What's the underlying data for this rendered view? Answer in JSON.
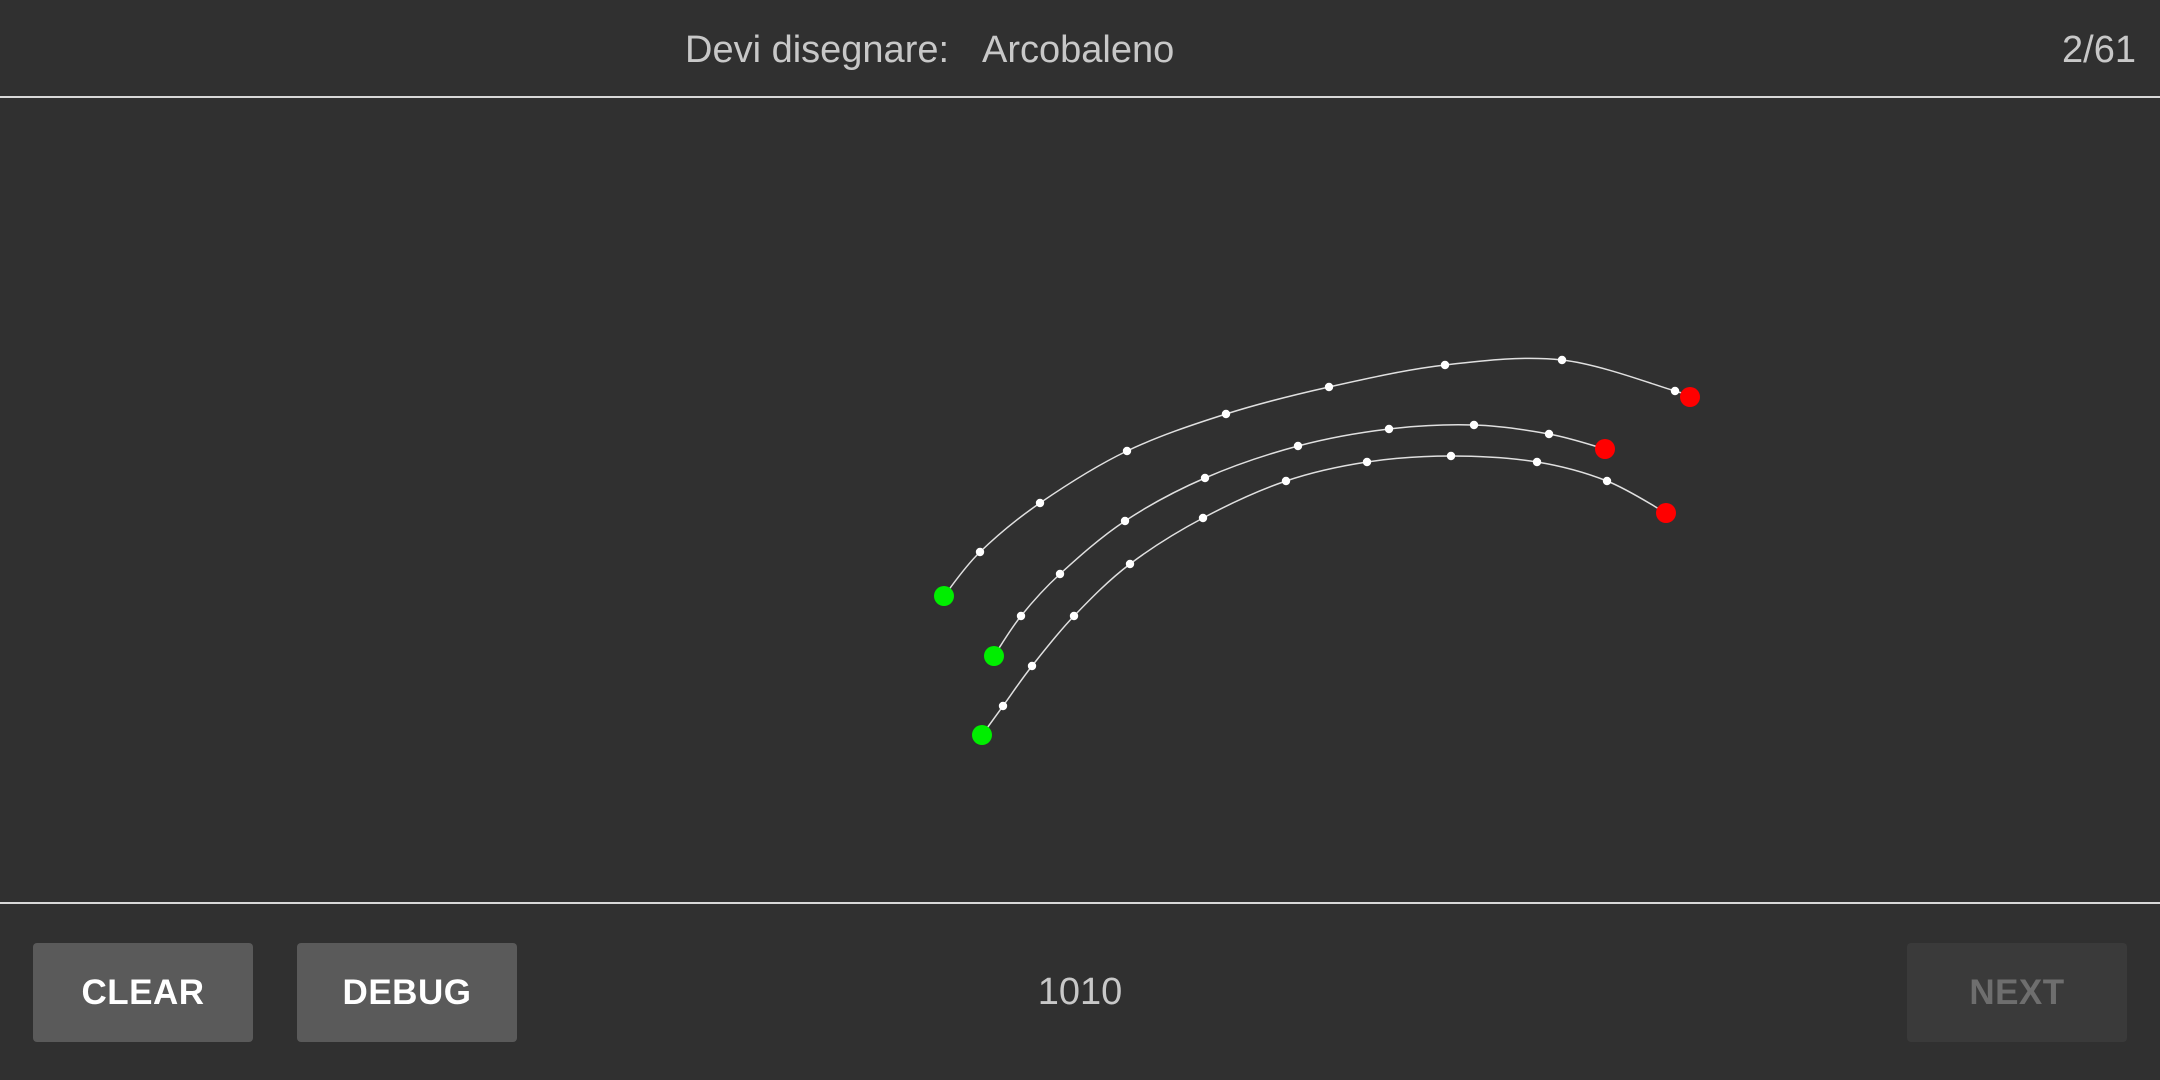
{
  "header": {
    "prompt_label": "Devi disegnare:",
    "prompt_word": "Arcobaleno",
    "progress": "2/61"
  },
  "footer": {
    "clear_label": "CLEAR",
    "debug_label": "DEBUG",
    "score": "1010",
    "next_label": "NEXT",
    "next_enabled": false
  },
  "colors": {
    "background": "#303030",
    "stroke": "#e0e0e0",
    "point": "#ffffff",
    "start_point": "#00ee00",
    "end_point": "#ff0000"
  },
  "strokes_count": 3
}
